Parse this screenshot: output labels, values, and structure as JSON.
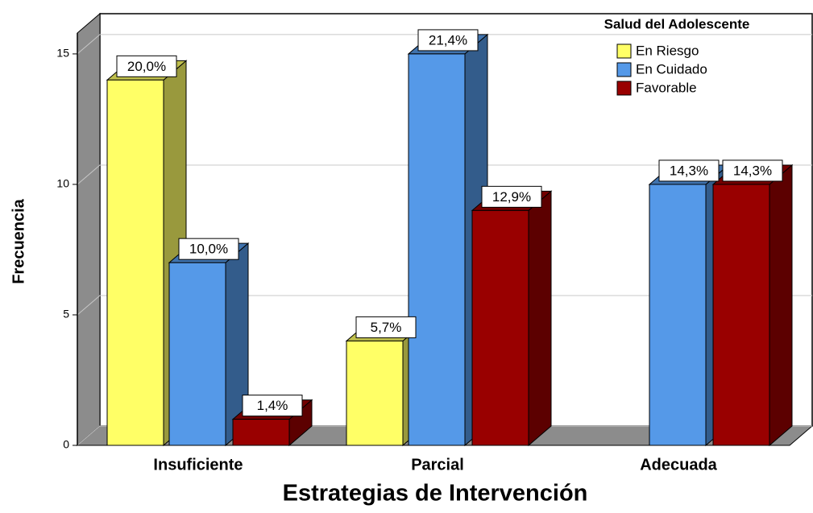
{
  "chart_data": {
    "type": "bar3d",
    "x_label": "Estrategias de Intervención",
    "y_label": "Frecuencia",
    "legend_title": "Salud del Adolescente",
    "legend": "top-right",
    "grid": true,
    "categories": [
      "Insuficiente",
      "Parcial",
      "Adecuada"
    ],
    "series": [
      {
        "name": "En Riesgo",
        "color": "#ffff66",
        "values": [
          14,
          4,
          null
        ],
        "labels": [
          "20,0%",
          "5,7%",
          null
        ]
      },
      {
        "name": "En Cuidado",
        "color": "#5599e8",
        "values": [
          7,
          15,
          10
        ],
        "labels": [
          "10,0%",
          "21,4%",
          "14,3%"
        ]
      },
      {
        "name": "Favorable",
        "color": "#990000",
        "values": [
          1,
          9,
          10
        ],
        "labels": [
          "1,4%",
          "12,9%",
          "14,3%"
        ]
      }
    ],
    "ylim": [
      0,
      15.8
    ],
    "yticks": [
      0,
      5,
      10,
      15
    ]
  }
}
